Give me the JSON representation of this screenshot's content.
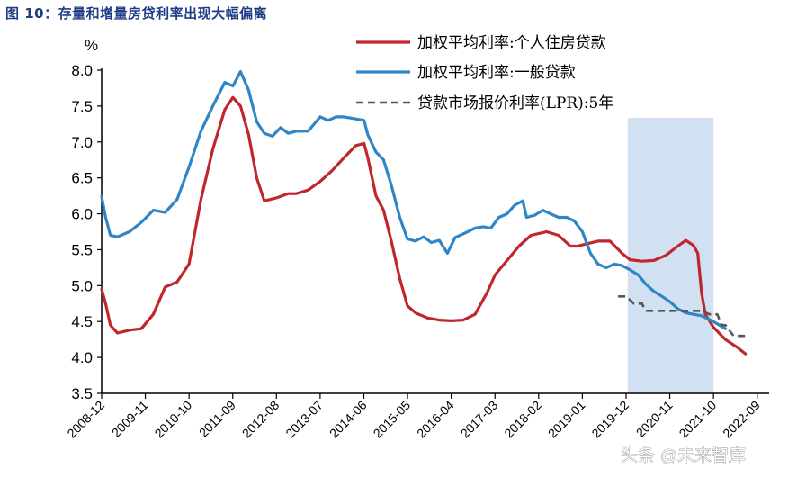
{
  "figure": {
    "title": "图 10：存量和增量房贷利率出现大幅偏离",
    "watermark": "头条 @未来智库"
  },
  "chart_data": {
    "type": "line",
    "ylabel": "%",
    "ylim": [
      3.5,
      8.0
    ],
    "yticks": [
      "3.5",
      "4.0",
      "4.5",
      "5.0",
      "5.5",
      "6.0",
      "6.5",
      "7.0",
      "7.5",
      "8.0"
    ],
    "xlim": [
      2008.917,
      2022.917
    ],
    "xticks": [
      {
        "label": "2008-12",
        "x": 2008.917
      },
      {
        "label": "2009-11",
        "x": 2009.833
      },
      {
        "label": "2010-10",
        "x": 2010.75
      },
      {
        "label": "2011-09",
        "x": 2011.667
      },
      {
        "label": "2012-08",
        "x": 2012.583
      },
      {
        "label": "2013-07",
        "x": 2013.5
      },
      {
        "label": "2014-06",
        "x": 2014.417
      },
      {
        "label": "2015-05",
        "x": 2015.333
      },
      {
        "label": "2016-04",
        "x": 2016.25
      },
      {
        "label": "2017-03",
        "x": 2017.167
      },
      {
        "label": "2018-02",
        "x": 2018.083
      },
      {
        "label": "2019-01",
        "x": 2019.0
      },
      {
        "label": "2019-12",
        "x": 2019.917
      },
      {
        "label": "2020-11",
        "x": 2020.833
      },
      {
        "label": "2021-10",
        "x": 2021.75
      },
      {
        "label": "2022-09",
        "x": 2022.667
      }
    ],
    "shaded_region": [
      2019.95,
      2021.75
    ],
    "legend_position": "top-right",
    "series": [
      {
        "name": "加权平均利率:个人住房贷款",
        "color": "#c0272d",
        "dash": "solid",
        "points": [
          [
            2008.917,
            4.95
          ],
          [
            2009.0,
            4.75
          ],
          [
            2009.1,
            4.45
          ],
          [
            2009.25,
            4.34
          ],
          [
            2009.5,
            4.38
          ],
          [
            2009.75,
            4.4
          ],
          [
            2010.0,
            4.6
          ],
          [
            2010.25,
            4.98
          ],
          [
            2010.5,
            5.05
          ],
          [
            2010.75,
            5.3
          ],
          [
            2011.0,
            6.2
          ],
          [
            2011.25,
            6.9
          ],
          [
            2011.5,
            7.45
          ],
          [
            2011.67,
            7.62
          ],
          [
            2011.83,
            7.5
          ],
          [
            2012.0,
            7.1
          ],
          [
            2012.17,
            6.5
          ],
          [
            2012.33,
            6.18
          ],
          [
            2012.58,
            6.22
          ],
          [
            2012.83,
            6.28
          ],
          [
            2013.0,
            6.28
          ],
          [
            2013.25,
            6.33
          ],
          [
            2013.5,
            6.45
          ],
          [
            2013.75,
            6.6
          ],
          [
            2014.0,
            6.78
          ],
          [
            2014.25,
            6.95
          ],
          [
            2014.42,
            6.98
          ],
          [
            2014.5,
            6.78
          ],
          [
            2014.67,
            6.25
          ],
          [
            2014.83,
            6.05
          ],
          [
            2015.0,
            5.6
          ],
          [
            2015.17,
            5.1
          ],
          [
            2015.33,
            4.72
          ],
          [
            2015.5,
            4.62
          ],
          [
            2015.75,
            4.55
          ],
          [
            2016.0,
            4.52
          ],
          [
            2016.25,
            4.51
          ],
          [
            2016.5,
            4.52
          ],
          [
            2016.75,
            4.6
          ],
          [
            2017.0,
            4.9
          ],
          [
            2017.17,
            5.15
          ],
          [
            2017.42,
            5.35
          ],
          [
            2017.67,
            5.55
          ],
          [
            2017.92,
            5.7
          ],
          [
            2018.25,
            5.75
          ],
          [
            2018.5,
            5.7
          ],
          [
            2018.75,
            5.55
          ],
          [
            2018.9,
            5.55
          ],
          [
            2019.08,
            5.58
          ],
          [
            2019.33,
            5.62
          ],
          [
            2019.58,
            5.62
          ],
          [
            2019.83,
            5.45
          ],
          [
            2020.0,
            5.36
          ],
          [
            2020.25,
            5.34
          ],
          [
            2020.5,
            5.35
          ],
          [
            2020.75,
            5.42
          ],
          [
            2021.0,
            5.55
          ],
          [
            2021.17,
            5.63
          ],
          [
            2021.33,
            5.56
          ],
          [
            2021.42,
            5.45
          ],
          [
            2021.5,
            4.9
          ],
          [
            2021.58,
            4.6
          ],
          [
            2021.75,
            4.42
          ],
          [
            2022.0,
            4.25
          ],
          [
            2022.25,
            4.14
          ],
          [
            2022.42,
            4.05
          ]
        ]
      },
      {
        "name": "加权平均利率:一般贷款",
        "color": "#2f86c6",
        "dash": "solid",
        "points": [
          [
            2008.917,
            6.24
          ],
          [
            2009.0,
            5.95
          ],
          [
            2009.1,
            5.7
          ],
          [
            2009.25,
            5.68
          ],
          [
            2009.5,
            5.75
          ],
          [
            2009.75,
            5.88
          ],
          [
            2010.0,
            6.05
          ],
          [
            2010.25,
            6.02
          ],
          [
            2010.5,
            6.2
          ],
          [
            2010.75,
            6.65
          ],
          [
            2011.0,
            7.15
          ],
          [
            2011.25,
            7.5
          ],
          [
            2011.5,
            7.83
          ],
          [
            2011.67,
            7.78
          ],
          [
            2011.83,
            7.98
          ],
          [
            2012.0,
            7.72
          ],
          [
            2012.17,
            7.28
          ],
          [
            2012.33,
            7.12
          ],
          [
            2012.5,
            7.08
          ],
          [
            2012.67,
            7.2
          ],
          [
            2012.83,
            7.12
          ],
          [
            2013.0,
            7.15
          ],
          [
            2013.25,
            7.15
          ],
          [
            2013.5,
            7.35
          ],
          [
            2013.67,
            7.3
          ],
          [
            2013.83,
            7.35
          ],
          [
            2014.0,
            7.35
          ],
          [
            2014.25,
            7.32
          ],
          [
            2014.42,
            7.3
          ],
          [
            2014.5,
            7.1
          ],
          [
            2014.67,
            6.86
          ],
          [
            2014.83,
            6.75
          ],
          [
            2015.0,
            6.38
          ],
          [
            2015.17,
            5.95
          ],
          [
            2015.33,
            5.65
          ],
          [
            2015.5,
            5.62
          ],
          [
            2015.67,
            5.68
          ],
          [
            2015.83,
            5.6
          ],
          [
            2016.0,
            5.63
          ],
          [
            2016.17,
            5.45
          ],
          [
            2016.33,
            5.67
          ],
          [
            2016.5,
            5.72
          ],
          [
            2016.75,
            5.8
          ],
          [
            2016.92,
            5.82
          ],
          [
            2017.08,
            5.8
          ],
          [
            2017.25,
            5.95
          ],
          [
            2017.42,
            6.0
          ],
          [
            2017.58,
            6.12
          ],
          [
            2017.75,
            6.18
          ],
          [
            2017.83,
            5.95
          ],
          [
            2018.0,
            5.98
          ],
          [
            2018.17,
            6.05
          ],
          [
            2018.33,
            6.0
          ],
          [
            2018.5,
            5.95
          ],
          [
            2018.67,
            5.95
          ],
          [
            2018.83,
            5.9
          ],
          [
            2019.0,
            5.75
          ],
          [
            2019.17,
            5.45
          ],
          [
            2019.33,
            5.3
          ],
          [
            2019.5,
            5.25
          ],
          [
            2019.67,
            5.3
          ],
          [
            2019.83,
            5.28
          ],
          [
            2020.0,
            5.22
          ],
          [
            2020.17,
            5.15
          ],
          [
            2020.33,
            5.02
          ],
          [
            2020.5,
            4.92
          ],
          [
            2020.67,
            4.85
          ],
          [
            2020.83,
            4.78
          ],
          [
            2021.0,
            4.68
          ],
          [
            2021.17,
            4.62
          ],
          [
            2021.5,
            4.58
          ],
          [
            2021.75,
            4.5
          ],
          [
            2022.0,
            4.4
          ]
        ]
      },
      {
        "name": "贷款市场报价利率(LPR):5年",
        "color": "#555555",
        "dash": "dashed",
        "points": [
          [
            2019.75,
            4.85
          ],
          [
            2019.92,
            4.85
          ],
          [
            2020.0,
            4.8
          ],
          [
            2020.08,
            4.75
          ],
          [
            2020.25,
            4.75
          ],
          [
            2020.33,
            4.65
          ],
          [
            2020.5,
            4.65
          ],
          [
            2021.5,
            4.65
          ],
          [
            2021.67,
            4.6
          ],
          [
            2021.83,
            4.6
          ],
          [
            2021.92,
            4.45
          ],
          [
            2022.0,
            4.45
          ],
          [
            2022.17,
            4.3
          ],
          [
            2022.5,
            4.3
          ]
        ]
      }
    ]
  }
}
